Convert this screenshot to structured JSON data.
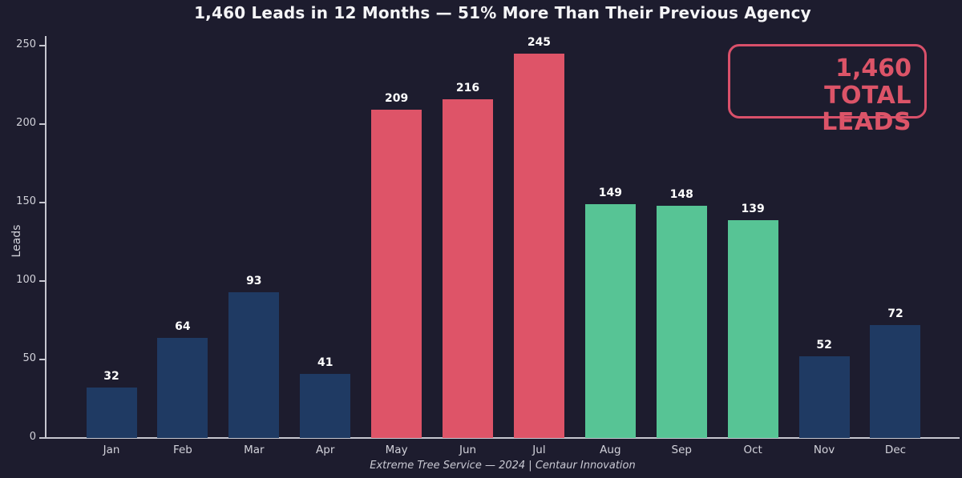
{
  "title": "1,460 Leads in 12 Months — 51% More Than Their Previous Agency",
  "total_badge": {
    "value": "1,460",
    "label": "TOTAL LEADS"
  },
  "footer": "Extreme Tree Service — 2024  |  Centaur Innovation",
  "chart_data": {
    "type": "bar",
    "title": "1,460 Leads in 12 Months — 51% More Than Their Previous Agency",
    "categories": [
      "Jan",
      "Feb",
      "Mar",
      "Apr",
      "May",
      "Jun",
      "Jul",
      "Aug",
      "Sep",
      "Oct",
      "Nov",
      "Dec"
    ],
    "values": [
      32,
      64,
      93,
      41,
      209,
      216,
      245,
      149,
      148,
      139,
      52,
      72
    ],
    "bar_colors": [
      "#1f3a63",
      "#1f3a63",
      "#1f3a63",
      "#1f3a63",
      "#de5468",
      "#de5468",
      "#de5468",
      "#57c495",
      "#57c495",
      "#57c495",
      "#1f3a63",
      "#1f3a63"
    ],
    "value_labels_shown": true,
    "xlabel": "",
    "ylabel": "Leads",
    "ylim": [
      0,
      250
    ],
    "yticks": [
      0,
      50,
      100,
      150,
      200,
      250
    ],
    "grid": false,
    "legend": false,
    "total": 1460
  },
  "colors": {
    "background": "#1d1c2e",
    "bar_blue": "#1f3a63",
    "bar_red": "#de5468",
    "bar_green": "#57c495",
    "axis": "#c6c6cf",
    "tick_text": "#d2d2da",
    "value_label_text": "#ffffff",
    "badge_accent": "#d9506a",
    "title_text": "#f5f5f7",
    "footer_text": "#c9c9d3"
  }
}
